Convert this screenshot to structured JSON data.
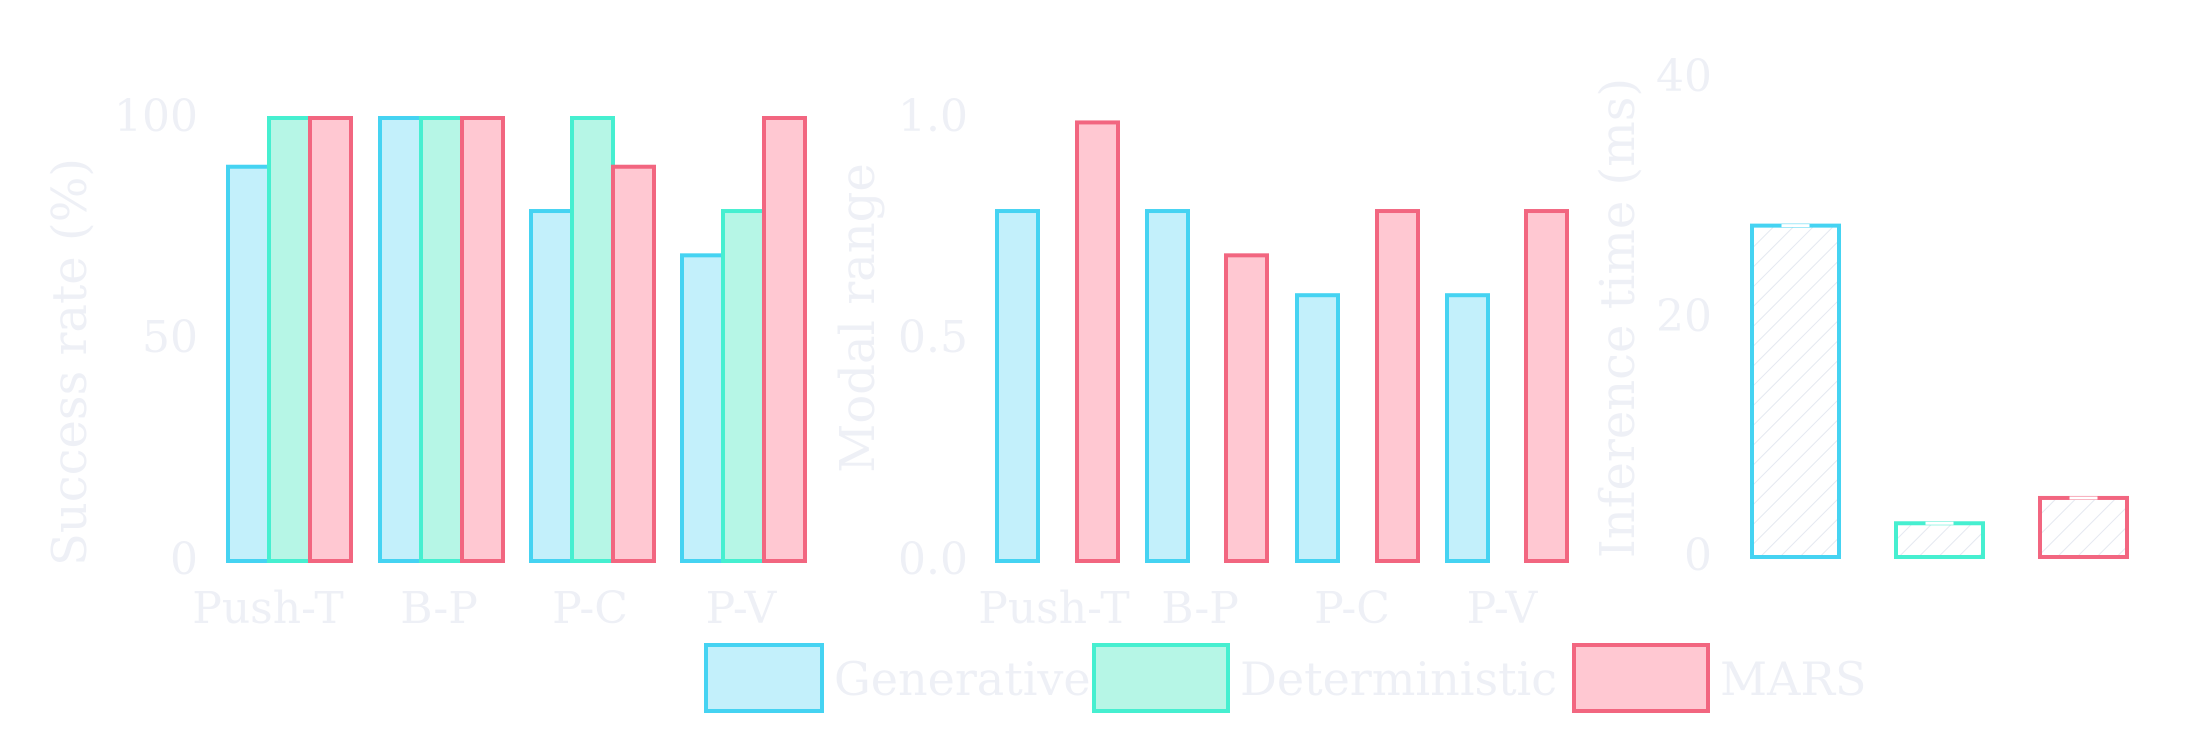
{
  "colors": {
    "Generative": {
      "fill": "#c3f0fb",
      "stroke": "#45d3f2"
    },
    "Deterministic": {
      "fill": "#b6f6e6",
      "stroke": "#46efd0"
    },
    "MARS": {
      "fill": "#ffc8d2",
      "stroke": "#f26680"
    },
    "text": "#eef0f6"
  },
  "legend": [
    "Generative",
    "Deterministic",
    "MARS"
  ],
  "chart_data": [
    {
      "type": "bar",
      "ylabel": "Success rate (%)",
      "ylim": [
        0,
        100
      ],
      "yticks": [
        "0",
        "50",
        "100"
      ],
      "categories": [
        "Push-T",
        "B-P",
        "P-C",
        "P-V"
      ],
      "series": [
        {
          "name": "Generative",
          "values": [
            89,
            100,
            79,
            69
          ]
        },
        {
          "name": "Deterministic",
          "values": [
            100,
            100,
            100,
            79
          ]
        },
        {
          "name": "MARS",
          "values": [
            100,
            100,
            89,
            100
          ]
        }
      ]
    },
    {
      "type": "bar",
      "ylabel": "Modal range",
      "ylim": [
        0,
        1.0
      ],
      "yticks": [
        "0.0",
        "0.5",
        "1.0"
      ],
      "categories": [
        "Push-T",
        "B-P",
        "P-C",
        "P-V"
      ],
      "series": [
        {
          "name": "Generative",
          "values": [
            0.79,
            0.79,
            0.6,
            0.6
          ]
        },
        {
          "name": "MARS",
          "values": [
            0.99,
            0.69,
            0.79,
            0.79
          ]
        }
      ]
    },
    {
      "type": "bar",
      "ylabel": "Inference time (ms)",
      "ylim": [
        0,
        40
      ],
      "yticks": [
        "0",
        "20",
        "40"
      ],
      "categories": [
        "Generative",
        "Deterministic",
        "MARS"
      ],
      "series": [
        {
          "name": "Inference time",
          "values": [
            27.5,
            2.8,
            4.9
          ]
        }
      ]
    }
  ]
}
